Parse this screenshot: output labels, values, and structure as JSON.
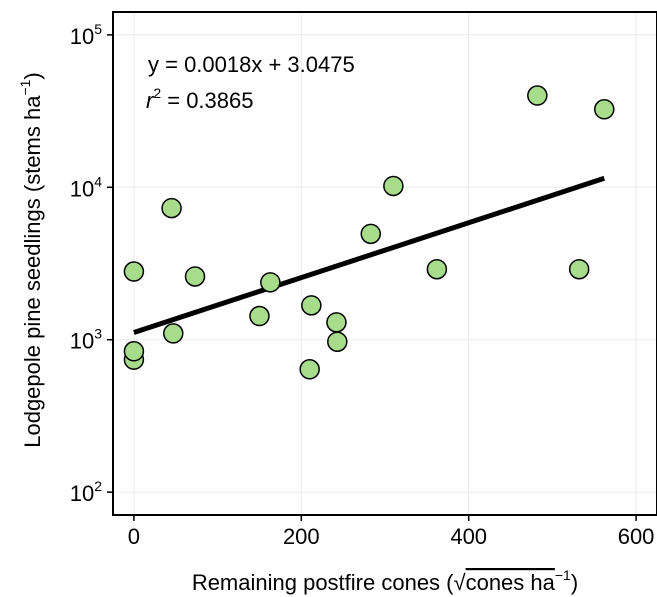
{
  "chart_data": {
    "type": "scatter",
    "x_scale": "linear",
    "y_scale": "log",
    "xlim": [
      -25,
      625
    ],
    "ylim_log10": [
      1.85,
      5.15
    ],
    "x_ticks": [
      0,
      200,
      400,
      600
    ],
    "x_tick_labels": [
      "0",
      "200",
      "400",
      "600"
    ],
    "y_ticks": [
      100,
      1000,
      10000,
      100000
    ],
    "y_tick_labels": [
      {
        "base": "10",
        "exp": "2"
      },
      {
        "base": "10",
        "exp": "3"
      },
      {
        "base": "10",
        "exp": "4"
      },
      {
        "base": "10",
        "exp": "5"
      }
    ],
    "xlabel": {
      "main": "Remaining postfire cones (",
      "root": "√",
      "radicand": "cones ha",
      "exp": "−1",
      "close": ")"
    },
    "ylabel": {
      "main": "Lodgepole pine seedlings (stems ha",
      "exp": "−1",
      "close": ")"
    },
    "grid": true,
    "points": [
      {
        "x": 0,
        "y": 740
      },
      {
        "x": 0,
        "y": 840
      },
      {
        "x": 0,
        "y": 2800
      },
      {
        "x": 45,
        "y": 7300
      },
      {
        "x": 47,
        "y": 1100
      },
      {
        "x": 73,
        "y": 2600
      },
      {
        "x": 150,
        "y": 1430
      },
      {
        "x": 163,
        "y": 2380
      },
      {
        "x": 210,
        "y": 640
      },
      {
        "x": 212,
        "y": 1680
      },
      {
        "x": 242,
        "y": 1300
      },
      {
        "x": 243,
        "y": 970
      },
      {
        "x": 283,
        "y": 4950
      },
      {
        "x": 310,
        "y": 10200
      },
      {
        "x": 362,
        "y": 2900
      },
      {
        "x": 482,
        "y": 40000
      },
      {
        "x": 532,
        "y": 2900
      },
      {
        "x": 562,
        "y": 32500
      }
    ],
    "regression": {
      "slope": 0.0018,
      "intercept": 3.0475,
      "x_range": [
        0,
        562
      ],
      "equation": "y = 0.0018x + 3.0475",
      "r2_label": "r",
      "r2_exp": "2",
      "r2_value": " = 0.3865"
    },
    "colors": {
      "point_fill": "#a6dc8a",
      "point_stroke": "#000000",
      "line": "#000000",
      "grid": "#ebebeb",
      "frame": "#000000"
    }
  }
}
